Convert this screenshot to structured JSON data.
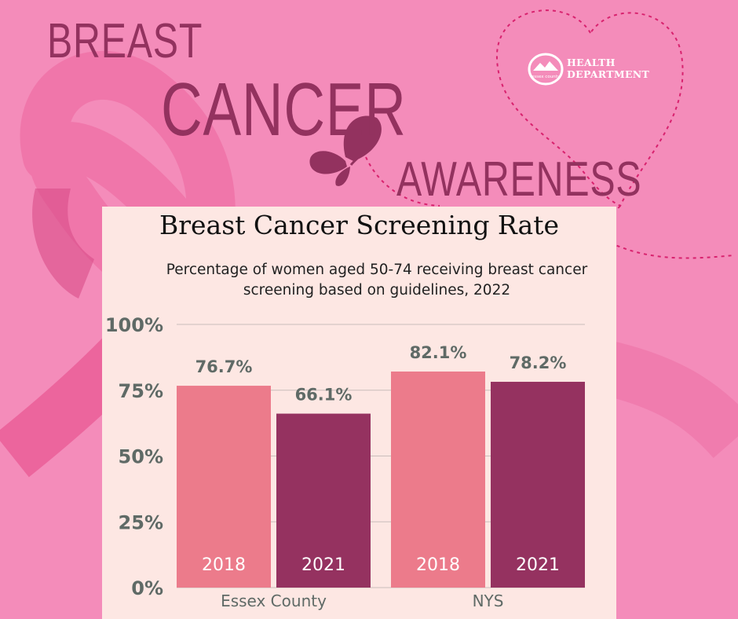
{
  "banner": {
    "word1": "BREAST",
    "word2": "CANCER",
    "word3": "AWARENESS"
  },
  "logo": {
    "line1": "HEALTH",
    "line2": "DEPARTMENT",
    "emblem_text": "essex county"
  },
  "colors": {
    "background": "#f48cba",
    "title": "#93325f",
    "bar_2018": "#ec7b8b",
    "bar_2021": "#953260",
    "panel": "#fde7e3"
  },
  "chart_data": {
    "type": "bar",
    "title": "Breast Cancer Screening Rate",
    "subtitle_lines": [
      "Percentage of women aged 50-74 receiving breast cancer",
      "screening based on guidelines, 2022"
    ],
    "categories": [
      "Essex County",
      "NYS"
    ],
    "series": [
      {
        "name": "2018",
        "values": [
          76.7,
          82.1
        ],
        "labels": [
          "76.7%",
          "82.1%"
        ]
      },
      {
        "name": "2021",
        "values": [
          66.1,
          78.2
        ],
        "labels": [
          "66.1%",
          "78.2%"
        ]
      }
    ],
    "y_ticks": [
      0,
      25,
      50,
      75,
      100
    ],
    "y_tick_labels": [
      "0%",
      "25%",
      "50%",
      "75%",
      "100%"
    ],
    "ylim": [
      0,
      100
    ],
    "gridlines": true,
    "xlabel": "",
    "ylabel": ""
  }
}
